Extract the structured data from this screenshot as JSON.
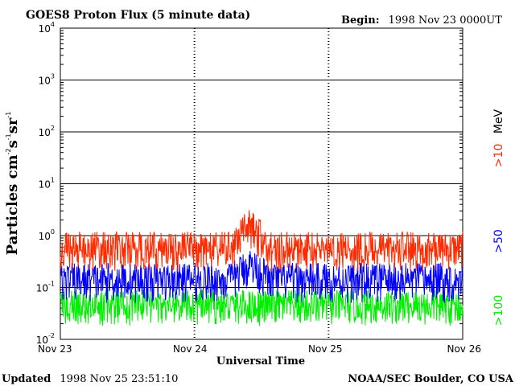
{
  "chart_data": {
    "type": "line",
    "title": "GOES8 Proton Flux (5 minute data)",
    "begin_label": "Begin:",
    "begin_value": "1998 Nov 23 0000UT",
    "ylabel_main": "Particles cm",
    "ylabel_exp1": "-2",
    "ylabel_s": "s",
    "ylabel_exp2": "-1",
    "ylabel_sr": "sr",
    "ylabel_exp3": "-1",
    "xlabel": "Universal Time",
    "yscale": "log",
    "ylim": [
      0.01,
      10000
    ],
    "y_ticks": [
      {
        "base": "10",
        "exp": "4",
        "value": 10000
      },
      {
        "base": "10",
        "exp": "3",
        "value": 1000
      },
      {
        "base": "10",
        "exp": "2",
        "value": 100
      },
      {
        "base": "10",
        "exp": "1",
        "value": 10
      },
      {
        "base": "10",
        "exp": "0",
        "value": 1
      },
      {
        "base": "10",
        "exp": "-1",
        "value": 0.1
      },
      {
        "base": "10",
        "exp": "-2",
        "value": 0.01
      }
    ],
    "x_range_days": [
      0,
      3
    ],
    "x_ticks": [
      {
        "label": "Nov 23",
        "day": 0
      },
      {
        "label": "Nov 24",
        "day": 1
      },
      {
        "label": "Nov 25",
        "day": 2
      },
      {
        "label": "Nov 26",
        "day": 3
      }
    ],
    "series": [
      {
        "name": ">10",
        "unit": "MeV",
        "color": "#ff2a00",
        "baseline": 0.55,
        "noise_low": 0.2,
        "noise_high": 1.2,
        "events": [
          {
            "start": 1.28,
            "end": 1.55,
            "peak": 1.5
          }
        ]
      },
      {
        "name": ">50",
        "color": "#0000ff",
        "baseline": 0.11,
        "noise_low": 0.05,
        "noise_high": 0.3,
        "events": [
          {
            "start": 1.28,
            "end": 1.55,
            "peak": 0.22
          }
        ]
      },
      {
        "name": ">100",
        "color": "#00ee00",
        "baseline": 0.035,
        "noise_low": 0.018,
        "noise_high": 0.09,
        "events": []
      }
    ]
  },
  "footer": {
    "updated_label": "Updated",
    "updated_value": "1998 Nov 25 23:51:10",
    "source": "NOAA/SEC Boulder, CO USA"
  }
}
